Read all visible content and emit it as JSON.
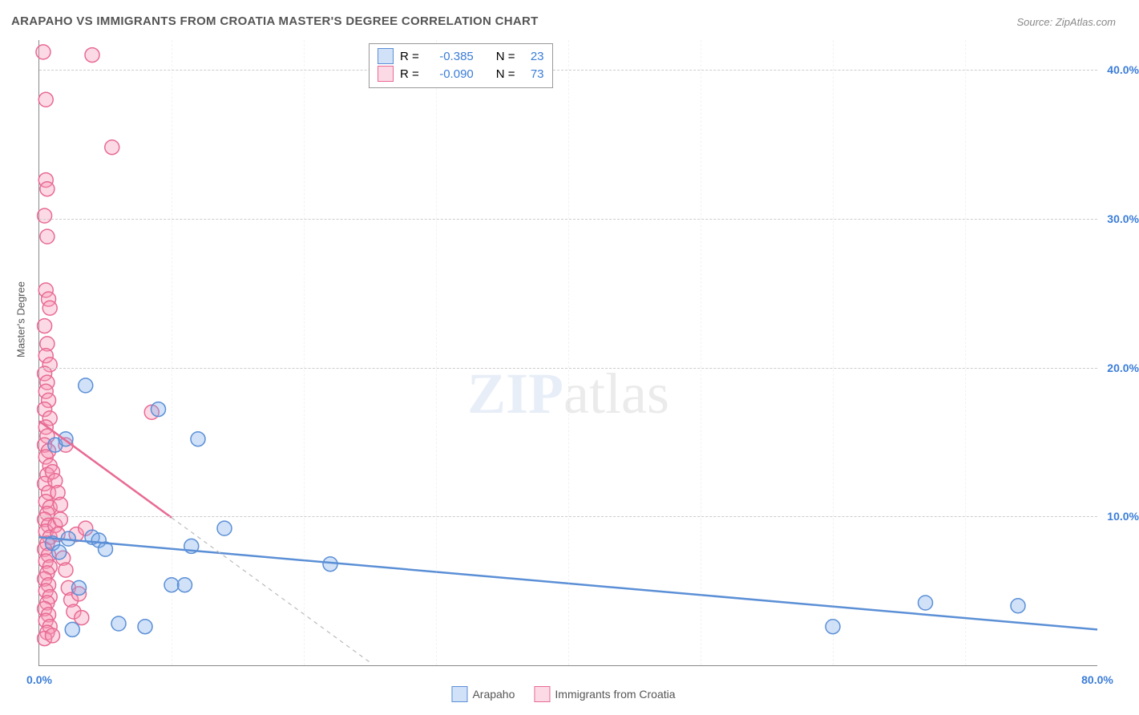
{
  "title": "ARAPAHO VS IMMIGRANTS FROM CROATIA MASTER'S DEGREE CORRELATION CHART",
  "source": "Source: ZipAtlas.com",
  "watermark_a": "ZIP",
  "watermark_b": "atlas",
  "yaxis_title": "Master's Degree",
  "chart": {
    "type": "scatter",
    "xlim": [
      0,
      80
    ],
    "ylim": [
      0,
      42
    ],
    "xticks": [
      0,
      80
    ],
    "xtick_labels": [
      "0.0%",
      "80.0%"
    ],
    "yticks": [
      10,
      20,
      30,
      40
    ],
    "ytick_labels": [
      "10.0%",
      "20.0%",
      "30.0%",
      "40.0%"
    ],
    "y_label_color": "#3b7dd8",
    "x_label_color": "#3b7dd8",
    "grid_color": "#cccccc",
    "background_color": "#ffffff",
    "marker_radius": 9,
    "marker_stroke_width": 1.5,
    "regression_width_solid": 2.5,
    "regression_dash": "5,5",
    "series": [
      {
        "name": "Arapaho",
        "fill": "rgba(120,170,235,0.35)",
        "stroke": "#5b8fd6",
        "R": "-0.385",
        "N": "23",
        "regression": {
          "x1": 0,
          "y1": 8.6,
          "x2": 80,
          "y2": 2.4,
          "dash_after_x": null
        },
        "points": [
          [
            1.0,
            8.2
          ],
          [
            1.2,
            14.8
          ],
          [
            1.5,
            7.6
          ],
          [
            2.0,
            15.2
          ],
          [
            2.2,
            8.5
          ],
          [
            2.5,
            2.4
          ],
          [
            3.0,
            5.2
          ],
          [
            3.5,
            18.8
          ],
          [
            4.0,
            8.6
          ],
          [
            4.5,
            8.4
          ],
          [
            5.0,
            7.8
          ],
          [
            6.0,
            2.8
          ],
          [
            8.0,
            2.6
          ],
          [
            9.0,
            17.2
          ],
          [
            10.0,
            5.4
          ],
          [
            11.0,
            5.4
          ],
          [
            11.5,
            8.0
          ],
          [
            12.0,
            15.2
          ],
          [
            14.0,
            9.2
          ],
          [
            22.0,
            6.8
          ],
          [
            60.0,
            2.6
          ],
          [
            67.0,
            4.2
          ],
          [
            74.0,
            4.0
          ]
        ]
      },
      {
        "name": "Immigrants from Croatia",
        "fill": "rgba(245,150,180,0.35)",
        "stroke": "#e86a93",
        "R": "-0.090",
        "N": "73",
        "regression": {
          "x1": 0,
          "y1": 16.4,
          "x2": 25,
          "y2": 0.2,
          "dash_after_x": 10
        },
        "points": [
          [
            0.3,
            41.2
          ],
          [
            0.5,
            38.0
          ],
          [
            0.5,
            32.6
          ],
          [
            0.6,
            32.0
          ],
          [
            0.4,
            30.2
          ],
          [
            0.6,
            28.8
          ],
          [
            0.5,
            25.2
          ],
          [
            0.7,
            24.6
          ],
          [
            0.8,
            24.0
          ],
          [
            0.4,
            22.8
          ],
          [
            0.6,
            21.6
          ],
          [
            0.5,
            20.8
          ],
          [
            0.8,
            20.2
          ],
          [
            0.4,
            19.6
          ],
          [
            0.6,
            19.0
          ],
          [
            0.5,
            18.4
          ],
          [
            0.7,
            17.8
          ],
          [
            0.4,
            17.2
          ],
          [
            0.8,
            16.6
          ],
          [
            0.5,
            16.0
          ],
          [
            0.6,
            15.4
          ],
          [
            0.4,
            14.8
          ],
          [
            0.7,
            14.4
          ],
          [
            0.5,
            14.0
          ],
          [
            0.8,
            13.4
          ],
          [
            0.6,
            12.8
          ],
          [
            0.4,
            12.2
          ],
          [
            0.7,
            11.6
          ],
          [
            0.5,
            11.0
          ],
          [
            0.8,
            10.6
          ],
          [
            0.6,
            10.2
          ],
          [
            0.4,
            9.8
          ],
          [
            0.7,
            9.4
          ],
          [
            0.5,
            9.0
          ],
          [
            0.8,
            8.6
          ],
          [
            0.6,
            8.2
          ],
          [
            0.4,
            7.8
          ],
          [
            0.7,
            7.4
          ],
          [
            0.5,
            7.0
          ],
          [
            0.8,
            6.6
          ],
          [
            0.6,
            6.2
          ],
          [
            0.4,
            5.8
          ],
          [
            0.7,
            5.4
          ],
          [
            0.5,
            5.0
          ],
          [
            0.8,
            4.6
          ],
          [
            0.6,
            4.2
          ],
          [
            0.4,
            3.8
          ],
          [
            0.7,
            3.4
          ],
          [
            0.5,
            3.0
          ],
          [
            0.8,
            2.6
          ],
          [
            0.6,
            2.2
          ],
          [
            0.4,
            1.8
          ],
          [
            1.2,
            9.4
          ],
          [
            1.4,
            8.8
          ],
          [
            1.6,
            9.8
          ],
          [
            1.8,
            7.2
          ],
          [
            2.0,
            6.4
          ],
          [
            2.2,
            5.2
          ],
          [
            2.4,
            4.4
          ],
          [
            2.6,
            3.6
          ],
          [
            2.8,
            8.8
          ],
          [
            3.0,
            4.8
          ],
          [
            3.2,
            3.2
          ],
          [
            3.5,
            9.2
          ],
          [
            4.0,
            41.0
          ],
          [
            5.5,
            34.8
          ],
          [
            1.0,
            13.0
          ],
          [
            1.2,
            12.4
          ],
          [
            1.4,
            11.6
          ],
          [
            1.6,
            10.8
          ],
          [
            2.0,
            14.8
          ],
          [
            8.5,
            17.0
          ],
          [
            1.0,
            2.0
          ]
        ]
      }
    ]
  },
  "legend_top": {
    "r_label": "R  =",
    "n_label": "N  =",
    "value_color": "#3b7dd8"
  },
  "legend_bottom": {
    "items": [
      "Arapaho",
      "Immigrants from Croatia"
    ]
  }
}
